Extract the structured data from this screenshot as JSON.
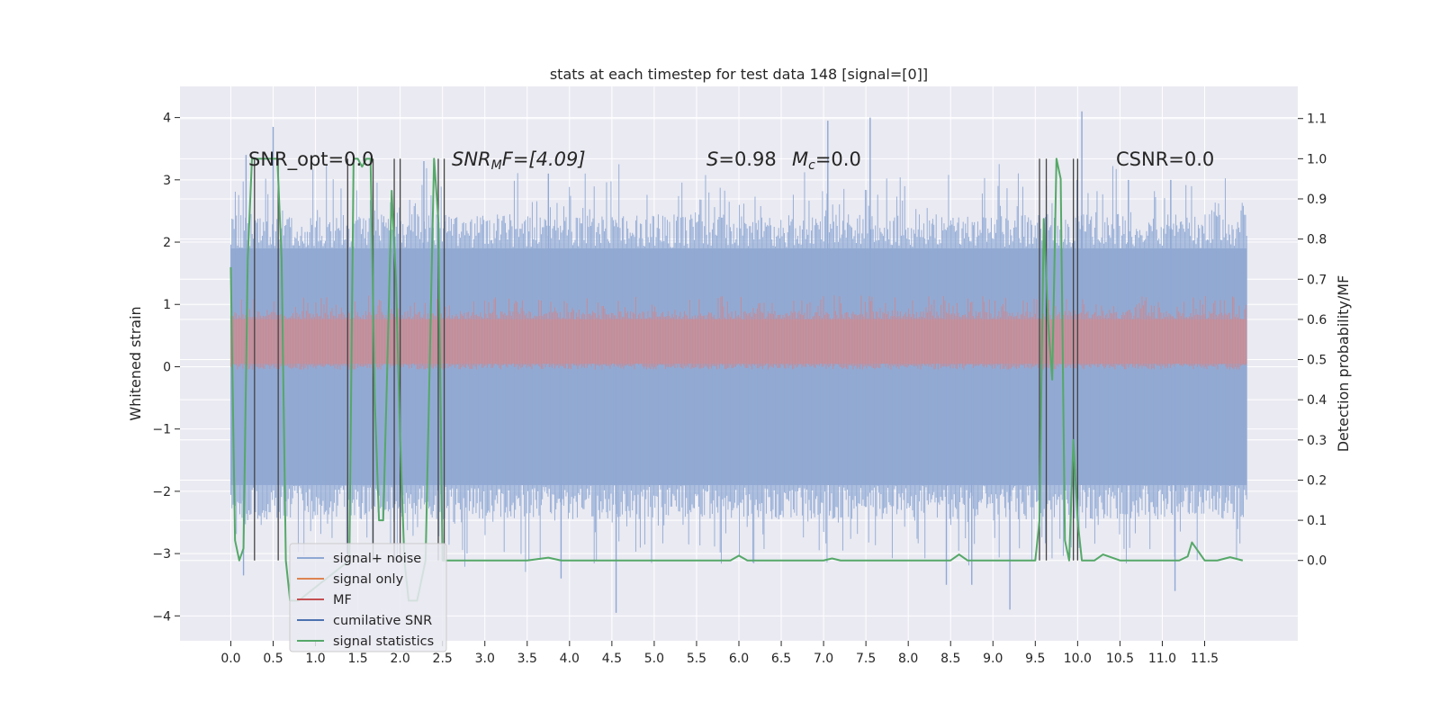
{
  "chart_data": {
    "type": "line",
    "title": "stats at each timestep for test data 148 [signal=[0]]",
    "xlabel": "",
    "ylabel": "Whitened strain",
    "ylabel_right": "Detection probability/MF",
    "xlim": [
      -0.6,
      12.6
    ],
    "ylim": [
      -4.4,
      4.5
    ],
    "ylim_right": [
      -0.2,
      1.18
    ],
    "x_ticks": [
      0.0,
      0.5,
      1.0,
      1.5,
      2.0,
      2.5,
      3.0,
      3.5,
      4.0,
      4.5,
      5.0,
      5.5,
      6.0,
      6.5,
      7.0,
      7.5,
      8.0,
      8.5,
      9.0,
      9.5,
      10.0,
      10.5,
      11.0,
      11.5
    ],
    "x_tick_labels": [
      "0.0",
      "0.5",
      "1.0",
      "1.5",
      "2.0",
      "2.5",
      "3.0",
      "3.5",
      "4.0",
      "4.5",
      "5.0",
      "5.5",
      "6.0",
      "6.5",
      "7.0",
      "7.5",
      "8.0",
      "8.5",
      "9.0",
      "9.5",
      "10.0",
      "10.5",
      "11.0",
      "11.5"
    ],
    "y_ticks": [
      -4,
      -3,
      -2,
      -1,
      0,
      1,
      2,
      3,
      4
    ],
    "y_tick_labels": [
      "−4",
      "−3",
      "−2",
      "−1",
      "0",
      "1",
      "2",
      "3",
      "4"
    ],
    "y_right_ticks": [
      0.0,
      0.1,
      0.2,
      0.3,
      0.4,
      0.5,
      0.6,
      0.7,
      0.8,
      0.9,
      1.0,
      1.1
    ],
    "y_right_tick_labels": [
      "0.0",
      "0.1",
      "0.2",
      "0.3",
      "0.4",
      "0.5",
      "0.6",
      "0.7",
      "0.8",
      "0.9",
      "1.0",
      "1.1"
    ],
    "grid": true,
    "legend_position": "lower-left",
    "annotations": {
      "snr_opt": "SNR_opt=0.0",
      "snr_mf_prefix": "SNR",
      "snr_mf_sub": "M",
      "snr_mf_tail": "F=[4.09]",
      "s_label": "S",
      "s_value": "=0.98",
      "mc_label": "M",
      "mc_sub": "c",
      "mc_value": "=0.0",
      "csnr": "CSNR=0.0"
    },
    "series": [
      {
        "name": "signal+ noise",
        "color": "#4c72b0",
        "kind": "noise-band",
        "x_range": [
          0.0,
          12.0
        ],
        "core_range": [
          -1.9,
          1.9
        ],
        "peaks_high": [
          [
            0.18,
            3.4
          ],
          [
            0.5,
            3.85
          ],
          [
            2.28,
            3.3
          ],
          [
            3.75,
            3.1
          ],
          [
            7.05,
            3.95
          ],
          [
            7.55,
            4.0
          ],
          [
            10.05,
            4.1
          ],
          [
            10.6,
            3.0
          ],
          [
            11.1,
            3.0
          ]
        ],
        "peaks_low": [
          [
            0.15,
            -3.35
          ],
          [
            3.9,
            -3.4
          ],
          [
            4.55,
            -3.95
          ],
          [
            8.45,
            -3.5
          ],
          [
            8.75,
            -3.5
          ],
          [
            9.2,
            -3.9
          ],
          [
            11.15,
            -3.6
          ]
        ]
      },
      {
        "name": "signal only",
        "color": "#dd8452",
        "values_note": "flat at 0"
      },
      {
        "name": "MF",
        "color": "#c44e52",
        "kind": "mf-band",
        "x_range": [
          0.0,
          12.0
        ],
        "core_range_right": [
          0.49,
          0.6
        ],
        "max_right": 0.66
      },
      {
        "name": "cumilative SNR",
        "color": "#4c72b0"
      },
      {
        "name": "signal statistics",
        "color": "#55a868",
        "x": [
          0.0,
          0.05,
          0.1,
          0.15,
          0.2,
          0.25,
          0.3,
          0.35,
          0.4,
          0.45,
          0.5,
          0.55,
          0.6,
          0.65,
          0.7,
          0.75,
          0.8,
          1.4,
          1.45,
          1.5,
          1.55,
          1.6,
          1.65,
          1.7,
          1.75,
          1.8,
          1.85,
          1.9,
          1.95,
          2.0,
          2.05,
          2.1,
          2.15,
          2.2,
          2.3,
          2.35,
          2.4,
          2.45,
          2.5,
          2.55,
          2.6,
          2.65,
          3.0,
          3.5,
          3.75,
          3.9,
          4.5,
          5.5,
          5.9,
          6.0,
          6.1,
          7.0,
          7.1,
          7.2,
          8.5,
          8.6,
          8.7,
          9.5,
          9.55,
          9.6,
          9.65,
          9.7,
          9.75,
          9.8,
          9.85,
          9.9,
          9.95,
          10.0,
          10.05,
          10.1,
          10.2,
          10.3,
          10.5,
          11.2,
          11.3,
          11.35,
          11.5,
          11.65,
          11.8,
          11.95
        ],
        "y": [
          0.73,
          0.05,
          0.0,
          0.03,
          0.75,
          1.0,
          1.0,
          1.0,
          1.0,
          1.0,
          1.0,
          1.0,
          0.75,
          0.0,
          -0.1,
          -0.1,
          -0.1,
          0.0,
          1.0,
          1.0,
          0.98,
          1.0,
          1.0,
          0.4,
          0.1,
          0.1,
          0.5,
          0.92,
          0.7,
          0.3,
          0.0,
          -0.1,
          -0.1,
          -0.1,
          0.0,
          0.5,
          1.0,
          0.85,
          0.0,
          0.0,
          0.0,
          0.0,
          0.0,
          0.0,
          0.007,
          0.0,
          0.0,
          0.0,
          0.0,
          0.012,
          0.0,
          0.0,
          0.005,
          0.0,
          0.0,
          0.015,
          0.0,
          0.0,
          0.1,
          0.85,
          0.6,
          0.45,
          1.0,
          0.95,
          0.05,
          0.0,
          0.3,
          0.1,
          0.0,
          0.0,
          0.0,
          0.015,
          0.0,
          0.0,
          0.01,
          0.045,
          0.0,
          0.0,
          0.008,
          0.0
        ]
      }
    ],
    "vertical_markers": [
      0.28,
      0.56,
      1.38,
      1.68,
      1.93,
      2.0,
      2.45,
      2.52,
      9.55,
      9.63,
      9.95,
      10.0
    ]
  },
  "legend": [
    {
      "label": "signal+ noise",
      "color": "#8fa8d4"
    },
    {
      "label": "signal only",
      "color": "#dd8452"
    },
    {
      "label": "MF",
      "color": "#c44e52"
    },
    {
      "label": "cumilative SNR",
      "color": "#4c72b0"
    },
    {
      "label": "signal statistics",
      "color": "#55a868"
    }
  ]
}
